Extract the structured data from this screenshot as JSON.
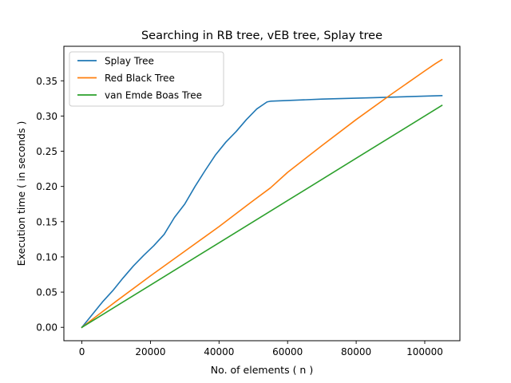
{
  "chart_data": {
    "type": "line",
    "title": "Searching in RB tree, vEB tree, Splay tree",
    "xlabel": "No. of elements ( n )",
    "ylabel": "Execution time ( in seconds )",
    "xlim": [
      -5250,
      110250
    ],
    "ylim": [
      -0.019,
      0.399
    ],
    "xticks": [
      0,
      20000,
      40000,
      60000,
      80000,
      100000
    ],
    "xtick_labels": [
      "0",
      "20000",
      "40000",
      "60000",
      "80000",
      "100000"
    ],
    "yticks": [
      0.0,
      0.05,
      0.1,
      0.15,
      0.2,
      0.25,
      0.3,
      0.35
    ],
    "ytick_labels": [
      "0.00",
      "0.05",
      "0.10",
      "0.15",
      "0.20",
      "0.25",
      "0.30",
      "0.35"
    ],
    "grid": false,
    "legend_position": "top-left",
    "series": [
      {
        "name": "Splay Tree",
        "color": "#1f77b4",
        "x": [
          0,
          3000,
          6000,
          9000,
          12000,
          15000,
          18000,
          21000,
          24000,
          27000,
          30000,
          33000,
          36000,
          39000,
          42000,
          45000,
          48000,
          51000,
          54000,
          55000,
          70000,
          85000,
          105000
        ],
        "y": [
          0,
          0.018,
          0.036,
          0.052,
          0.07,
          0.087,
          0.102,
          0.116,
          0.132,
          0.156,
          0.175,
          0.2,
          0.223,
          0.245,
          0.263,
          0.278,
          0.295,
          0.31,
          0.32,
          0.321,
          0.324,
          0.326,
          0.329
        ]
      },
      {
        "name": "Red Black Tree",
        "color": "#ff7f0e",
        "x": [
          0,
          10000,
          20000,
          30000,
          40000,
          50000,
          55000,
          60000,
          70000,
          80000,
          90000,
          100000,
          103000,
          105000
        ],
        "y": [
          0,
          0.037,
          0.073,
          0.108,
          0.143,
          0.18,
          0.198,
          0.22,
          0.258,
          0.295,
          0.33,
          0.364,
          0.374,
          0.38
        ]
      },
      {
        "name": "van Emde Boas Tree",
        "color": "#2ca02c",
        "x": [
          0,
          20000,
          40000,
          60000,
          80000,
          105000
        ],
        "y": [
          0,
          0.06,
          0.12,
          0.18,
          0.24,
          0.315
        ]
      }
    ]
  }
}
